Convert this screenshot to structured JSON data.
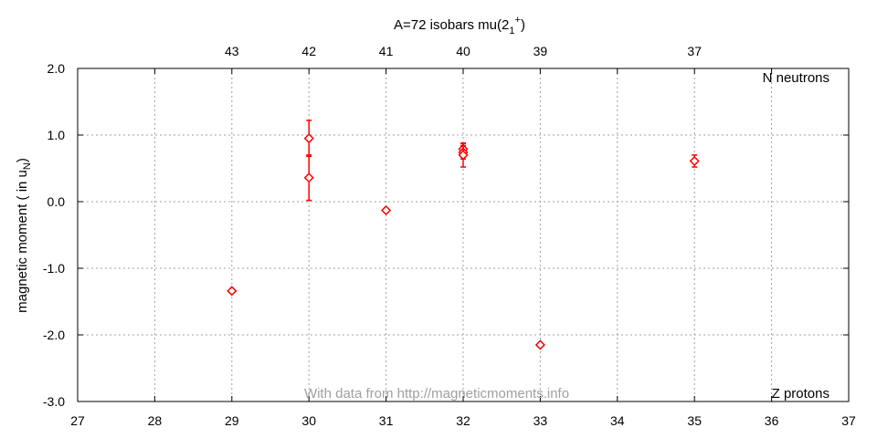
{
  "chart_data": {
    "type": "scatter",
    "title": "A=72 isobars mu(2",
    "title_sub": "1",
    "title_sup": "+",
    "title_close": ")",
    "ylabel": "magnetic moment ( in u",
    "ylabel_sub": "N",
    "ylabel_close": ")",
    "xlim": [
      27,
      37
    ],
    "ylim": [
      -3.0,
      2.0
    ],
    "x_ticks": [
      27,
      28,
      29,
      30,
      31,
      32,
      33,
      34,
      35,
      36,
      37
    ],
    "x_tick_labels": [
      "27",
      "28",
      "29",
      "30",
      "31",
      "32",
      "33",
      "34",
      "35",
      "36",
      "37"
    ],
    "y_ticks": [
      -3.0,
      -2.0,
      -1.0,
      0.0,
      1.0,
      2.0
    ],
    "y_tick_labels": [
      "-3.0",
      "-2.0",
      "-1.0",
      "0.0",
      "1.0",
      "2.0"
    ],
    "top_axis_ticks": [
      {
        "z": 29,
        "label": "43"
      },
      {
        "z": 30,
        "label": "42"
      },
      {
        "z": 31,
        "label": "41"
      },
      {
        "z": 32,
        "label": "40"
      },
      {
        "z": 33,
        "label": "39"
      },
      {
        "z": 35,
        "label": "37"
      }
    ],
    "top_right_note": "N neutrons",
    "bottom_right_note": "Z protons",
    "watermark": "With data from http://magneticmoments.info",
    "grid": true,
    "marker": "diamond",
    "series_color": "#ff0000",
    "points": [
      {
        "x": 29,
        "y": -1.34,
        "err": 0.02
      },
      {
        "x": 30,
        "y": 0.95,
        "err": 0.27
      },
      {
        "x": 30,
        "y": 0.36,
        "err": 0.34
      },
      {
        "x": 31,
        "y": -0.13,
        "err": 0.02
      },
      {
        "x": 32,
        "y": 0.79,
        "err": 0.08
      },
      {
        "x": 32,
        "y": 0.74,
        "err": 0.1
      },
      {
        "x": 32,
        "y": 0.7,
        "err": 0.18
      },
      {
        "x": 33,
        "y": -2.15,
        "err": 0.02
      },
      {
        "x": 35,
        "y": 0.61,
        "err": 0.09
      }
    ]
  }
}
